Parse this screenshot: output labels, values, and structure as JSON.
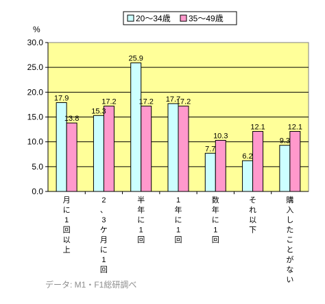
{
  "chart_data": {
    "type": "bar",
    "y_unit": "%",
    "ylim": [
      0,
      30
    ],
    "y_ticks": [
      "0.0",
      "5.0",
      "10.0",
      "15.0",
      "20.0",
      "25.0",
      "30.0"
    ],
    "grid": true,
    "legend_position": "top",
    "categories": [
      "月に1回以上",
      "2、3ケ月に1回",
      "半年に1回",
      "1年に1回",
      "数年に1回",
      "それ以下",
      "購入したことがない"
    ],
    "series": [
      {
        "name": "20～34歳",
        "color": "#ccffff",
        "values": [
          17.9,
          15.3,
          25.9,
          17.7,
          7.7,
          6.2,
          9.3
        ]
      },
      {
        "name": "35～49歳",
        "color": "#ff99cc",
        "values": [
          13.8,
          17.2,
          17.2,
          17.2,
          10.3,
          12.1,
          12.1
        ]
      }
    ],
    "plot_background": "#ffff99"
  },
  "source_note": "データ: M1・F1総研調べ"
}
